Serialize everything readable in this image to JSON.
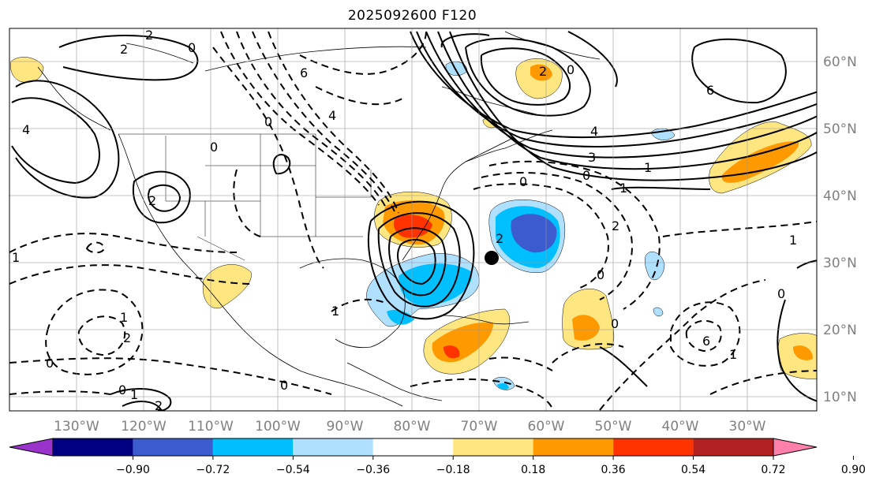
{
  "title": "2025092600 F120",
  "map": {
    "lon_labels": [
      "130°W",
      "120°W",
      "110°W",
      "100°W",
      "90°W",
      "80°W",
      "70°W",
      "60°W",
      "50°W",
      "40°W",
      "30°W"
    ],
    "lat_labels": [
      "60°N",
      "50°N",
      "40°N",
      "30°N",
      "20°N",
      "10°N"
    ],
    "contour_labels": [
      "2",
      "2",
      "0",
      "6",
      "4",
      "0",
      "0",
      "1",
      "2",
      "0",
      "4",
      "3",
      "1",
      "1",
      "0",
      "6",
      "2",
      "0",
      "1",
      "2",
      "2",
      "0",
      "0",
      "2",
      "1",
      "0",
      "0",
      "0",
      "1",
      "2",
      "1",
      "6",
      "1",
      "0",
      "4"
    ],
    "gridlines": "on",
    "marker": "storm-center"
  },
  "colorbar": {
    "ticks": [
      "−0.90",
      "−0.72",
      "−0.54",
      "−0.36",
      "−0.18",
      "0.18",
      "0.36",
      "0.54",
      "0.72",
      "0.90"
    ],
    "colors": [
      "#9933cc",
      "#000080",
      "#3b5bcf",
      "#00bfff",
      "#b0e0ff",
      "#ffffff",
      "#ffe680",
      "#ff9900",
      "#ff3300",
      "#b22222",
      "#ff80aa"
    ]
  }
}
